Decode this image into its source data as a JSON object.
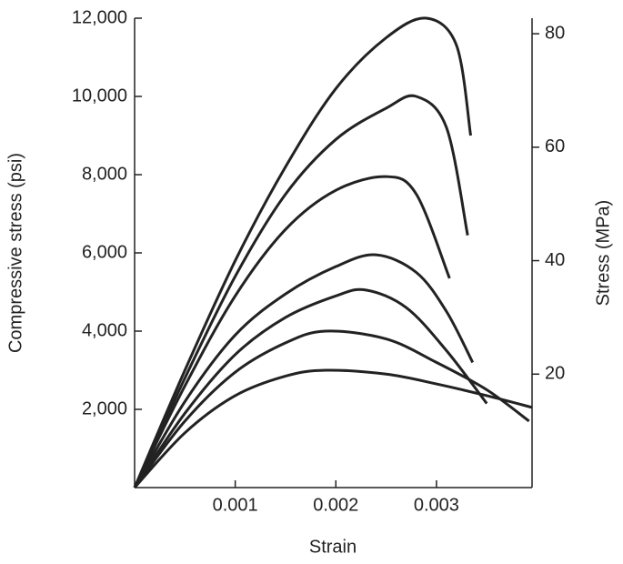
{
  "chart_data": {
    "type": "line",
    "x_label": "Strain",
    "y_label": "Compressive stress (psi)",
    "y2_label": "Stress (MPa)",
    "xlim": [
      0,
      0.00395
    ],
    "xticks": [
      0.001,
      0.002,
      0.003
    ],
    "ylim": [
      0,
      12000
    ],
    "yticks": [
      {
        "value": 2000,
        "label": "2,000"
      },
      {
        "value": 4000,
        "label": "4,000"
      },
      {
        "value": 6000,
        "label": "6,000"
      },
      {
        "value": 8000,
        "label": "8,000"
      },
      {
        "value": 10000,
        "label": "10,000"
      },
      {
        "value": 12000,
        "label": "12,000"
      }
    ],
    "y2lim": [
      0,
      82.74
    ],
    "y2ticks": [
      20,
      40,
      60,
      80
    ],
    "grid": false,
    "series": [
      {
        "color": "#222222",
        "x": [
          0,
          0.0005,
          0.001,
          0.0015,
          0.002,
          0.0025,
          0.0029,
          0.0032,
          0.00334
        ],
        "values": [
          0,
          3000,
          5800,
          8200,
          10200,
          11500,
          12000,
          11300,
          9000
        ]
      },
      {
        "color": "#222222",
        "x": [
          0,
          0.0005,
          0.001,
          0.0015,
          0.002,
          0.0025,
          0.0028,
          0.0031,
          0.00331
        ],
        "values": [
          0,
          2800,
          5400,
          7500,
          8900,
          9700,
          10000,
          9200,
          6450
        ]
      },
      {
        "color": "#222222",
        "x": [
          0,
          0.0005,
          0.001,
          0.0015,
          0.002,
          0.0025,
          0.0028,
          0.00313
        ],
        "values": [
          0,
          2600,
          4900,
          6600,
          7600,
          7950,
          7500,
          5350
        ]
      },
      {
        "color": "#222222",
        "x": [
          0,
          0.0005,
          0.001,
          0.0015,
          0.002,
          0.0024,
          0.0028,
          0.0031,
          0.00336
        ],
        "values": [
          0,
          2200,
          3900,
          4950,
          5650,
          5950,
          5500,
          4500,
          3200
        ]
      },
      {
        "color": "#222222",
        "x": [
          0,
          0.0005,
          0.001,
          0.0015,
          0.002,
          0.0023,
          0.0027,
          0.0031,
          0.0035
        ],
        "values": [
          0,
          1900,
          3400,
          4350,
          4900,
          5050,
          4600,
          3500,
          2150
        ]
      },
      {
        "color": "#222222",
        "x": [
          0,
          0.0005,
          0.001,
          0.0015,
          0.0019,
          0.0025,
          0.003,
          0.0035,
          0.00392
        ],
        "values": [
          0,
          1700,
          2950,
          3700,
          4000,
          3800,
          3200,
          2500,
          1700
        ]
      },
      {
        "color": "#222222",
        "x": [
          0,
          0.0005,
          0.001,
          0.0015,
          0.0019,
          0.0025,
          0.003,
          0.0035,
          0.00395
        ],
        "values": [
          0,
          1400,
          2350,
          2850,
          3000,
          2900,
          2650,
          2350,
          2050
        ]
      }
    ]
  }
}
